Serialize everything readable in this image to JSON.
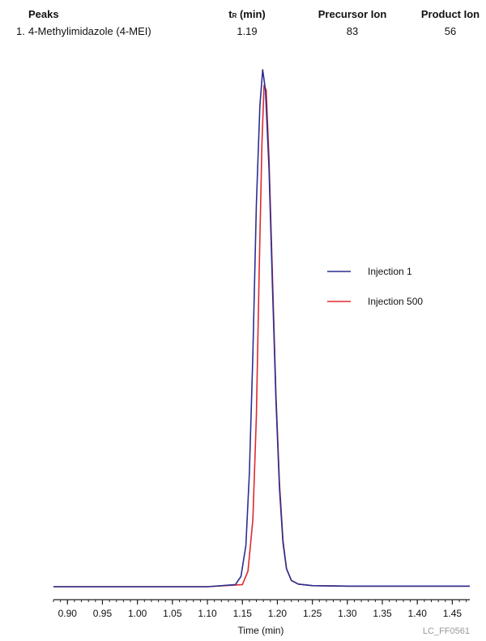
{
  "peaks_table": {
    "headers": {
      "peaks": "Peaks",
      "tr_main": "t",
      "tr_sub": "R",
      "tr_unit": " (min)",
      "precursor": "Precursor Ion",
      "product": "Product Ion"
    },
    "rows": [
      {
        "num": "1.",
        "name": "4-Methylimidazole (4-MEI)",
        "tr": "1.19",
        "precursor": "83",
        "product": "56"
      }
    ]
  },
  "figure_id": "LC_FF0561",
  "chart_data": {
    "type": "line",
    "title": "",
    "xlabel": "Time (min)",
    "ylabel": "",
    "xlim": [
      0.88,
      1.475
    ],
    "ylim": [
      0,
      1.0
    ],
    "grid": false,
    "legend": {
      "position": "right",
      "entries": [
        "Injection 1",
        "Injection 500"
      ]
    },
    "x_ticks": [
      "0.90",
      "0.95",
      "1.00",
      "1.05",
      "1.10",
      "1.15",
      "1.20",
      "1.25",
      "1.30",
      "1.35",
      "1.40",
      "1.45"
    ],
    "series": [
      {
        "name": "Injection 1",
        "color": "#2b2f8f",
        "x": [
          0.88,
          1.1,
          1.14,
          1.148,
          1.155,
          1.16,
          1.165,
          1.17,
          1.175,
          1.179,
          1.183,
          1.188,
          1.193,
          1.198,
          1.203,
          1.208,
          1.213,
          1.22,
          1.23,
          1.25,
          1.3,
          1.4,
          1.475
        ],
        "y": [
          0.0,
          0.0,
          0.004,
          0.02,
          0.08,
          0.22,
          0.45,
          0.74,
          0.93,
          1.0,
          0.96,
          0.81,
          0.58,
          0.36,
          0.19,
          0.085,
          0.035,
          0.012,
          0.005,
          0.002,
          0.001,
          0.001,
          0.001
        ]
      },
      {
        "name": "Injection 500",
        "color": "#e0282e",
        "x": [
          0.88,
          1.1,
          1.15,
          1.158,
          1.165,
          1.17,
          1.174,
          1.178,
          1.181,
          1.184,
          1.188,
          1.193,
          1.198,
          1.203,
          1.208,
          1.213,
          1.22,
          1.23,
          1.25,
          1.3,
          1.4,
          1.475
        ],
        "y": [
          0.0,
          0.0,
          0.004,
          0.03,
          0.13,
          0.33,
          0.61,
          0.86,
          0.97,
          0.96,
          0.83,
          0.6,
          0.37,
          0.2,
          0.09,
          0.035,
          0.012,
          0.005,
          0.002,
          0.001,
          0.001,
          0.001
        ]
      }
    ]
  }
}
